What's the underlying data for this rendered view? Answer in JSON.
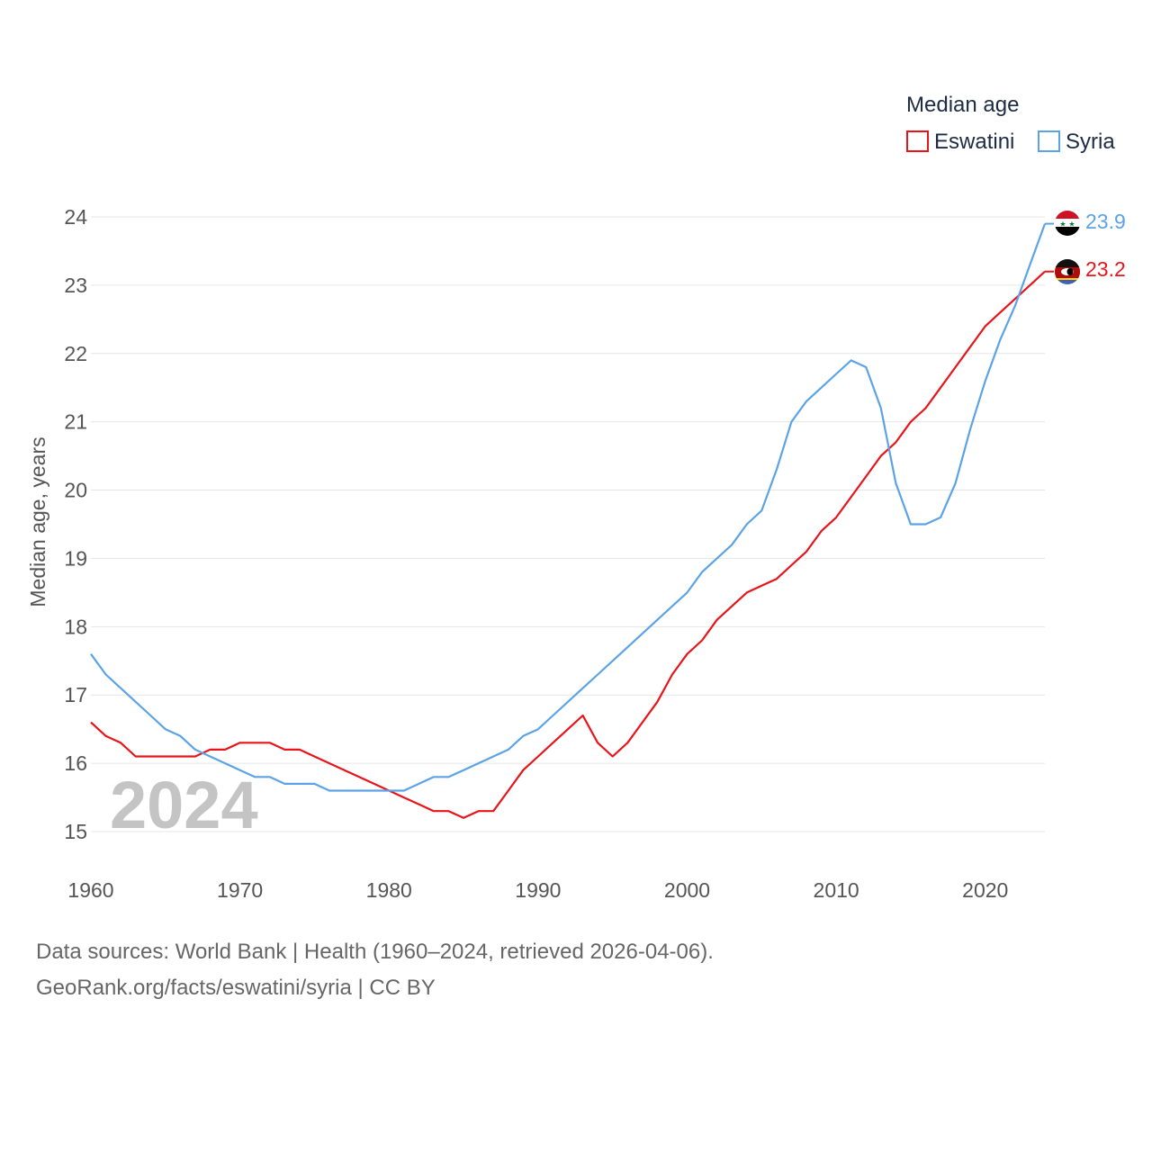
{
  "chart_data": {
    "type": "line",
    "legend_title": "Median age",
    "ylabel": "Median age, years",
    "xlabel": "",
    "xlim": [
      1960,
      2024
    ],
    "ylim": [
      14.5,
      24.3
    ],
    "y_ticks": [
      15,
      16,
      17,
      18,
      19,
      20,
      21,
      22,
      23,
      24
    ],
    "x_ticks": [
      1960,
      1970,
      1980,
      1990,
      2000,
      2010,
      2020
    ],
    "year_display": "2024",
    "series": [
      {
        "name": "Eswatini",
        "color": "#e8141a",
        "end_label": "23.2",
        "flag": "eswatini-flag-icon",
        "x": [
          1960,
          1961,
          1962,
          1963,
          1964,
          1965,
          1966,
          1967,
          1968,
          1969,
          1970,
          1971,
          1972,
          1973,
          1974,
          1975,
          1976,
          1977,
          1978,
          1979,
          1980,
          1981,
          1982,
          1983,
          1984,
          1985,
          1986,
          1987,
          1988,
          1989,
          1990,
          1991,
          1992,
          1993,
          1994,
          1995,
          1996,
          1997,
          1998,
          1999,
          2000,
          2001,
          2002,
          2003,
          2004,
          2005,
          2006,
          2007,
          2008,
          2009,
          2010,
          2011,
          2012,
          2013,
          2014,
          2015,
          2016,
          2017,
          2018,
          2019,
          2020,
          2021,
          2022,
          2023,
          2024
        ],
        "values": [
          16.6,
          16.4,
          16.3,
          16.1,
          16.1,
          16.1,
          16.1,
          16.1,
          16.2,
          16.2,
          16.3,
          16.3,
          16.3,
          16.2,
          16.2,
          16.1,
          16.0,
          15.9,
          15.8,
          15.7,
          15.6,
          15.5,
          15.4,
          15.3,
          15.3,
          15.2,
          15.3,
          15.3,
          15.6,
          15.9,
          16.1,
          16.3,
          16.5,
          16.7,
          16.3,
          16.1,
          16.3,
          16.6,
          16.9,
          17.3,
          17.6,
          17.8,
          18.1,
          18.3,
          18.5,
          18.6,
          18.7,
          18.9,
          19.1,
          19.4,
          19.6,
          19.9,
          20.2,
          20.5,
          20.7,
          21.0,
          21.2,
          21.5,
          21.8,
          22.1,
          22.4,
          22.6,
          22.8,
          23.0,
          23.2
        ]
      },
      {
        "name": "Syria",
        "color": "#5ba3e6",
        "end_label": "23.9",
        "flag": "syria-flag-icon",
        "x": [
          1960,
          1961,
          1962,
          1963,
          1964,
          1965,
          1966,
          1967,
          1968,
          1969,
          1970,
          1971,
          1972,
          1973,
          1974,
          1975,
          1976,
          1977,
          1978,
          1979,
          1980,
          1981,
          1982,
          1983,
          1984,
          1985,
          1986,
          1987,
          1988,
          1989,
          1990,
          1991,
          1992,
          1993,
          1994,
          1995,
          1996,
          1997,
          1998,
          1999,
          2000,
          2001,
          2002,
          2003,
          2004,
          2005,
          2006,
          2007,
          2008,
          2009,
          2010,
          2011,
          2012,
          2013,
          2014,
          2015,
          2016,
          2017,
          2018,
          2019,
          2020,
          2021,
          2022,
          2023,
          2024
        ],
        "values": [
          17.6,
          17.3,
          17.1,
          16.9,
          16.7,
          16.5,
          16.4,
          16.2,
          16.1,
          16.0,
          15.9,
          15.8,
          15.8,
          15.7,
          15.7,
          15.7,
          15.6,
          15.6,
          15.6,
          15.6,
          15.6,
          15.6,
          15.7,
          15.8,
          15.8,
          15.9,
          16.0,
          16.1,
          16.2,
          16.4,
          16.5,
          16.7,
          16.9,
          17.1,
          17.3,
          17.5,
          17.7,
          17.9,
          18.1,
          18.3,
          18.5,
          18.8,
          19.0,
          19.2,
          19.5,
          19.7,
          20.3,
          21.0,
          21.3,
          21.5,
          21.7,
          21.9,
          21.8,
          21.2,
          20.1,
          19.5,
          19.5,
          19.6,
          20.1,
          20.9,
          21.6,
          22.2,
          22.7,
          23.3,
          23.9
        ]
      }
    ]
  },
  "footer": {
    "line1": "Data sources: World Bank | Health (1960–2024, retrieved 2026-04-06).",
    "line2": "GeoRank.org/facts/eswatini/syria | CC BY"
  }
}
